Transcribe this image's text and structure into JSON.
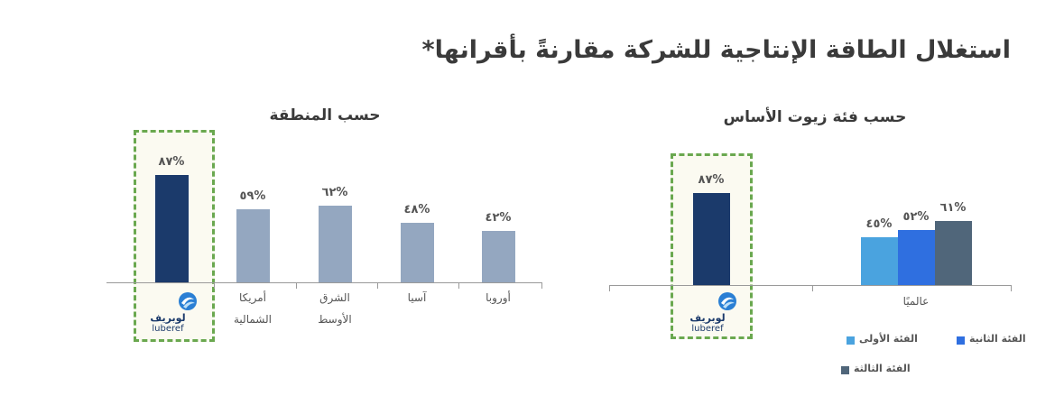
{
  "title": "استغلال الطاقة الإنتاجية للشركة مقارنةً بأقرانها*",
  "chart_data": [
    {
      "type": "grouped-bar",
      "title": "حسب فئة زيوت الأساس",
      "ylim": [
        0,
        100
      ],
      "highlight": {
        "name": "لوبريف",
        "latin": "luberef",
        "value": 87,
        "value_label": "%٨٧",
        "color": "#1b3a6b"
      },
      "categories": [
        "عالميًا"
      ],
      "series": [
        {
          "name": "الفئة الأولى",
          "color": "#4aa3df",
          "values": [
            45
          ],
          "value_labels": [
            "%٤٥"
          ]
        },
        {
          "name": "الفئة الثانية",
          "color": "#2f6fe0",
          "values": [
            52
          ],
          "value_labels": [
            "%٥٢"
          ]
        },
        {
          "name": "الفئة الثالثة",
          "color": "#50667a",
          "values": [
            61
          ],
          "value_labels": [
            "%٦١"
          ]
        }
      ]
    },
    {
      "type": "bar",
      "title": "حسب المنطقة",
      "ylim": [
        0,
        100
      ],
      "highlight": {
        "name": "لوبريف",
        "latin": "luberef",
        "value": 87,
        "value_label": "%٨٧",
        "color": "#1b3a6b"
      },
      "categories": [
        "أمريكا الشمالية",
        "الشرق الأوسط",
        "آسيا",
        "أوروبا"
      ],
      "values": [
        59,
        62,
        48,
        42
      ],
      "value_labels": [
        "%٥٩",
        "%٦٢",
        "%٤٨",
        "%٤٢"
      ],
      "color": "#94a7c0"
    }
  ]
}
